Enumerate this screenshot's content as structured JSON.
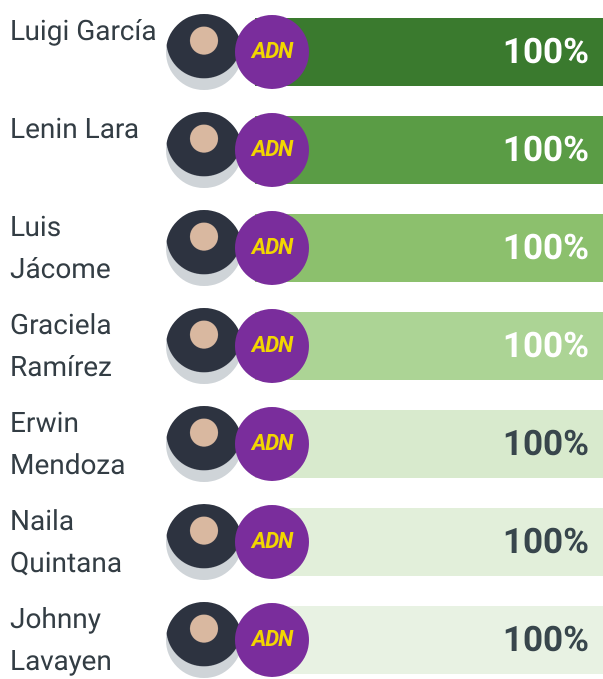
{
  "chart_data": {
    "type": "bar",
    "orientation": "horizontal",
    "categories": [
      "Luigi García",
      "Lenin Lara",
      "Luis Jácome",
      "Graciela Ramírez",
      "Erwin Mendoza",
      "Naila Quintana",
      "Johnny Lavayen"
    ],
    "values": [
      100,
      100,
      100,
      100,
      100,
      100,
      100
    ],
    "value_labels": [
      "100%",
      "100%",
      "100%",
      "100%",
      "100%",
      "100%",
      "100%"
    ],
    "colors": [
      "#3a7a2e",
      "#5a9c45",
      "#8cc06d",
      "#acd495",
      "#d8eacd",
      "#e2efda",
      "#e8f2e3"
    ],
    "party_logo": "ADN",
    "xlim": [
      0,
      100
    ]
  }
}
